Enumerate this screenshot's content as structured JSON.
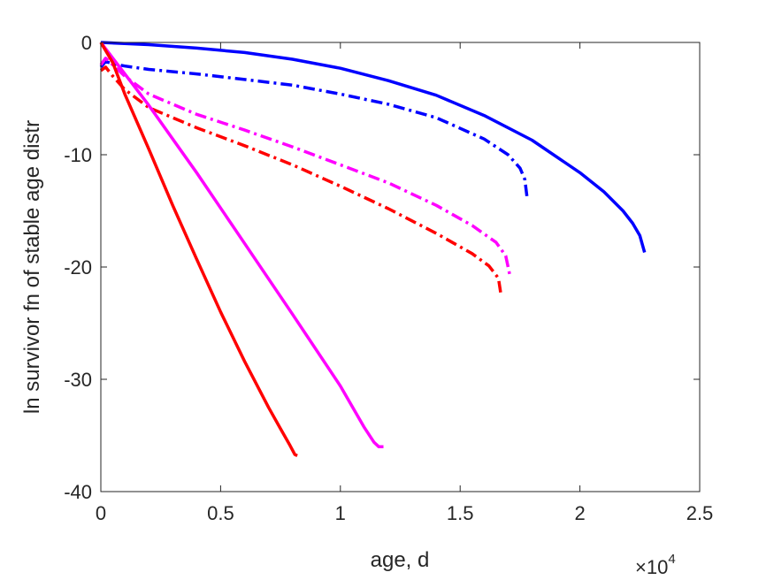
{
  "chart_data": {
    "type": "line",
    "xlabel": "age, d",
    "ylabel": "ln survivor fn of stable age distr",
    "x_exponent_label": {
      "base": "×10",
      "power": "4"
    },
    "xlim": [
      0,
      25000
    ],
    "ylim": [
      -40,
      0
    ],
    "xticks": [
      0,
      5000,
      10000,
      15000,
      20000,
      25000
    ],
    "xtick_labels": [
      "0",
      "0.5",
      "1",
      "1.5",
      "2",
      "2.5"
    ],
    "yticks": [
      0,
      -10,
      -20,
      -30,
      -40
    ],
    "ytick_labels": [
      "0",
      "-10",
      "-20",
      "-30",
      "-40"
    ],
    "grid": false,
    "legend": "none",
    "series": [
      {
        "color": "#0000ff",
        "style": "solid",
        "x": [
          0,
          2000,
          4000,
          6000,
          8000,
          10000,
          12000,
          14000,
          16000,
          18000,
          20000,
          21000,
          21800,
          22200,
          22500,
          22700
        ],
        "y": [
          0,
          -0.2,
          -0.5,
          -0.9,
          -1.5,
          -2.3,
          -3.4,
          -4.7,
          -6.5,
          -8.7,
          -11.6,
          -13.3,
          -15.0,
          -16.1,
          -17.2,
          -18.7
        ]
      },
      {
        "color": "#0000ff",
        "style": "dashdot",
        "x": [
          0,
          200,
          500,
          1000,
          2000,
          4000,
          6000,
          8000,
          10000,
          12000,
          14000,
          16000,
          17000,
          17500,
          17700,
          17800
        ],
        "y": [
          -2.2,
          -1.7,
          -1.9,
          -2.1,
          -2.4,
          -2.8,
          -3.3,
          -3.8,
          -4.6,
          -5.5,
          -6.7,
          -8.6,
          -10.0,
          -11.2,
          -12.2,
          -13.9
        ]
      },
      {
        "color": "#ff00ff",
        "style": "dashdot",
        "x": [
          0,
          200,
          500,
          1000,
          2000,
          4000,
          6000,
          8000,
          10000,
          12000,
          14000,
          15500,
          16500,
          16900,
          17100
        ],
        "y": [
          -2.0,
          -1.4,
          -2.0,
          -3.0,
          -4.6,
          -6.4,
          -7.8,
          -9.3,
          -10.9,
          -12.5,
          -14.5,
          -16.3,
          -17.8,
          -19.0,
          -21.0
        ]
      },
      {
        "color": "#ff0000",
        "style": "dashdot",
        "x": [
          0,
          200,
          500,
          1000,
          2000,
          4000,
          6000,
          8000,
          10000,
          12000,
          14000,
          15500,
          16200,
          16600,
          16700
        ],
        "y": [
          -2.5,
          -2.2,
          -3.0,
          -4.2,
          -5.8,
          -7.6,
          -9.2,
          -10.9,
          -12.8,
          -14.8,
          -17.0,
          -18.8,
          -19.9,
          -21.0,
          -22.4
        ]
      },
      {
        "color": "#ff00ff",
        "style": "solid",
        "x": [
          0,
          1000,
          2000,
          4000,
          6000,
          8000,
          10000,
          11000,
          11400,
          11600,
          11800
        ],
        "y": [
          0,
          -2.8,
          -5.6,
          -11.6,
          -17.9,
          -24.2,
          -30.6,
          -34.3,
          -35.6,
          -36.0,
          -36.0
        ]
      },
      {
        "color": "#ff0000",
        "style": "solid",
        "x": [
          0,
          500,
          1000,
          2000,
          3000,
          4000,
          5000,
          6000,
          7000,
          7500,
          7900,
          8100,
          8200
        ],
        "y": [
          0,
          -1.8,
          -4.6,
          -9.5,
          -14.5,
          -19.3,
          -24.0,
          -28.4,
          -32.5,
          -34.4,
          -35.9,
          -36.7,
          -36.8
        ]
      }
    ]
  }
}
